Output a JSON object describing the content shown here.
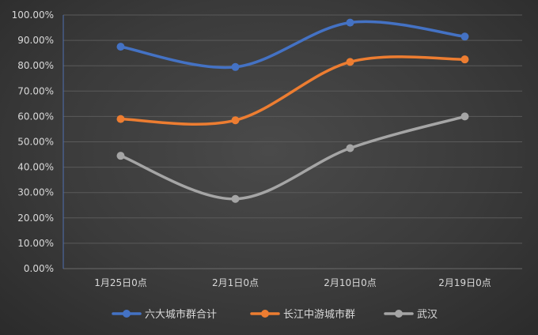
{
  "chart_data": {
    "type": "line",
    "title": "",
    "xlabel": "",
    "ylabel": "",
    "categories": [
      "1月25日0点",
      "2月1日0点",
      "2月10日0点",
      "2月19日0点"
    ],
    "ylim": [
      0,
      100
    ],
    "yticks": [
      "0.00%",
      "10.00%",
      "20.00%",
      "30.00%",
      "40.00%",
      "50.00%",
      "60.00%",
      "70.00%",
      "80.00%",
      "90.00%",
      "100.00%"
    ],
    "grid": true,
    "smooth": true,
    "legend_position": "bottom",
    "series": [
      {
        "name": "六大城市群合计",
        "color": "#4472c4",
        "values": [
          87.5,
          79.5,
          97.0,
          91.5
        ]
      },
      {
        "name": "长江中游城市群",
        "color": "#ed7d31",
        "values": [
          59.0,
          58.5,
          81.5,
          82.5
        ]
      },
      {
        "name": "武汉",
        "color": "#a5a5a5",
        "values": [
          44.5,
          27.5,
          47.5,
          60.0
        ]
      }
    ]
  }
}
